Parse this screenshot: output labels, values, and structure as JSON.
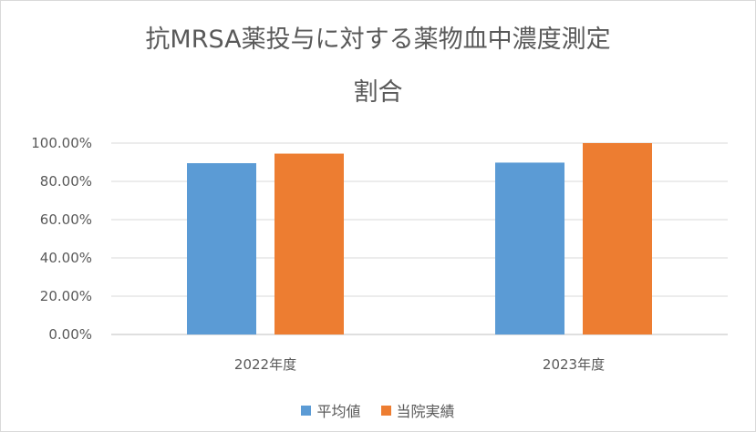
{
  "chart_data": {
    "type": "bar",
    "title_line1": "抗MRSA薬投与に対する薬物血中濃度測定",
    "title_line2": "割合",
    "categories": [
      "2022年度",
      "2023年度"
    ],
    "series": [
      {
        "name": "平均値",
        "color": "#5b9bd5",
        "values": [
          89.5,
          89.8
        ]
      },
      {
        "name": "当院実績",
        "color": "#ed7d31",
        "values": [
          94.5,
          100.0
        ]
      }
    ],
    "yticks": [
      "0.00%",
      "20.00%",
      "40.00%",
      "60.00%",
      "80.00%",
      "100.00%"
    ],
    "ylim": [
      0,
      100
    ],
    "grid": true,
    "legend_position": "bottom"
  }
}
